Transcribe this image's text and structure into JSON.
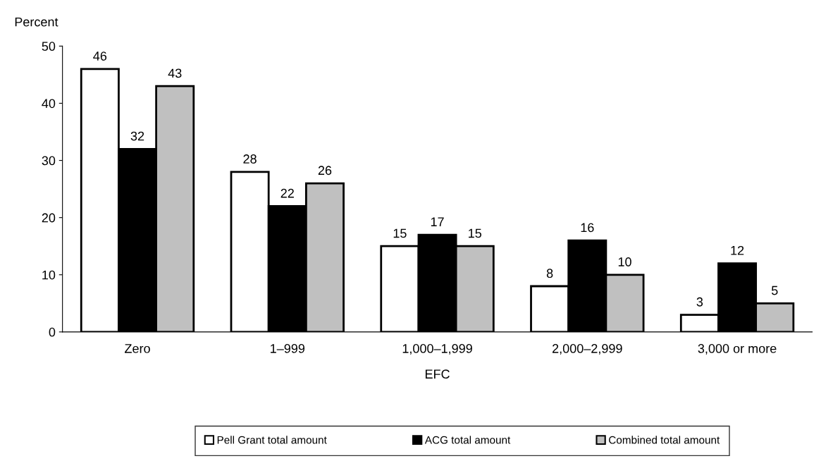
{
  "chart_data": {
    "type": "bar",
    "ylabel": "Percent",
    "xlabel": "EFC",
    "categories": [
      "Zero",
      "1–999",
      "1,000–1,999",
      "2,000–2,999",
      "3,000 or more"
    ],
    "series": [
      {
        "name": "Pell Grant total amount",
        "color": "#ffffff",
        "values": [
          46,
          28,
          15,
          8,
          3
        ]
      },
      {
        "name": "ACG total amount",
        "color": "#000000",
        "values": [
          32,
          22,
          17,
          16,
          12
        ]
      },
      {
        "name": "Combined total amount",
        "color": "#c0c0c0",
        "values": [
          43,
          26,
          15,
          10,
          5
        ]
      }
    ],
    "ylim": [
      0,
      50
    ],
    "yticks": [
      0,
      10,
      20,
      30,
      40,
      50
    ],
    "data_labels": true,
    "grid": false,
    "legend": "bottom"
  }
}
